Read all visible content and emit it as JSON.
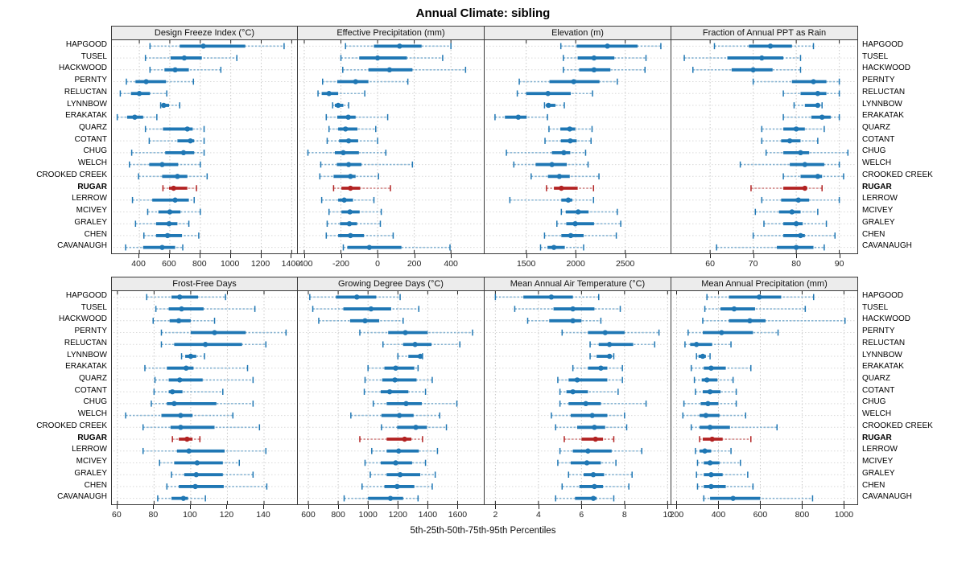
{
  "title": "Annual Climate: sibling",
  "caption": "5th-25th-50th-75th-95th Percentiles",
  "percentiles_order": [
    "5th",
    "25th",
    "50th",
    "75th",
    "95th"
  ],
  "sites": [
    "HAPGOOD",
    "TUSEL",
    "HACKWOOD",
    "PERNTY",
    "RELUCTAN",
    "LYNNBOW",
    "ERAKATAK",
    "QUARZ",
    "COTANT",
    "CHUG",
    "WELCH",
    "CROOKED CREEK",
    "RUGAR",
    "LERROW",
    "MCIVEY",
    "GRALEY",
    "CHEN",
    "CAVANAUGH"
  ],
  "highlight_site": "RUGAR",
  "colors": {
    "series_blue": "#1f77b4",
    "series_blue_light": "rgba(31,119,180,0.5)",
    "highlight_red": "#b22222",
    "highlight_red_light": "rgba(178,34,34,0.5)",
    "panel_header_bg": "#ececec",
    "panel_border": "#3a3a3a",
    "gridline": "#c9c9c9",
    "row_gridline": "#d9d9d9"
  },
  "chart_data": {
    "type": "percentile-interval",
    "mark": "dot-with-25-75-bar-and-5-95-whisker",
    "layout": "2x4 trellis, shared site rows, RUGAR highlighted red",
    "grid": "dotted vertical at ticks, dotted horizontal per site row",
    "panels": [
      {
        "title": "Design Freeze Index (°C)",
        "band": "top",
        "xlim": [
          220,
          1435
        ],
        "ticks": [
          400,
          600,
          800,
          1000,
          1200,
          1400
        ],
        "values": [
          [
            470,
            665,
            820,
            1095,
            1350
          ],
          [
            440,
            605,
            695,
            810,
            1040
          ],
          [
            470,
            565,
            635,
            725,
            935
          ],
          [
            315,
            375,
            445,
            575,
            755
          ],
          [
            275,
            345,
            400,
            470,
            580
          ],
          [
            540,
            548,
            560,
            595,
            665
          ],
          [
            255,
            320,
            370,
            425,
            515
          ],
          [
            440,
            555,
            715,
            750,
            825
          ],
          [
            465,
            650,
            735,
            760,
            825
          ],
          [
            350,
            570,
            690,
            760,
            825
          ],
          [
            335,
            465,
            550,
            655,
            800
          ],
          [
            395,
            550,
            650,
            715,
            845
          ],
          [
            555,
            595,
            625,
            715,
            775
          ],
          [
            355,
            485,
            635,
            725,
            760
          ],
          [
            455,
            525,
            600,
            670,
            800
          ],
          [
            375,
            510,
            595,
            650,
            725
          ],
          [
            430,
            510,
            585,
            680,
            790
          ],
          [
            310,
            425,
            550,
            635,
            685
          ]
        ]
      },
      {
        "title": "Effective Precipitation (mm)",
        "band": "top",
        "xlim": [
          -435,
          575
        ],
        "ticks": [
          -400,
          -200,
          0,
          200,
          400
        ],
        "values": [
          [
            -175,
            -20,
            120,
            240,
            400
          ],
          [
            -200,
            -100,
            0,
            160,
            355
          ],
          [
            -190,
            -50,
            65,
            190,
            480
          ],
          [
            -300,
            -220,
            -120,
            -50,
            165
          ],
          [
            -325,
            -305,
            -265,
            -215,
            -70
          ],
          [
            -245,
            -233,
            -215,
            -187,
            -158
          ],
          [
            -280,
            -220,
            -160,
            -120,
            55
          ],
          [
            -265,
            -215,
            -175,
            -110,
            -10
          ],
          [
            -275,
            -210,
            -158,
            -106,
            0
          ],
          [
            -380,
            -233,
            -187,
            -102,
            45
          ],
          [
            -310,
            -222,
            -158,
            -88,
            190
          ],
          [
            -315,
            -240,
            -148,
            -120,
            5
          ],
          [
            -240,
            -197,
            -148,
            -95,
            70
          ],
          [
            -305,
            -215,
            -182,
            -134,
            -20
          ],
          [
            -265,
            -197,
            -151,
            -98,
            20
          ],
          [
            -275,
            -205,
            -154,
            -112,
            15
          ],
          [
            -280,
            -215,
            -148,
            -74,
            85
          ],
          [
            -187,
            -165,
            -45,
            130,
            395
          ]
        ]
      },
      {
        "title": "Elevation (m)",
        "band": "top",
        "xlim": [
          1080,
          2950
        ],
        "ticks": [
          1500,
          2000,
          2500
        ],
        "values": [
          [
            1850,
            2010,
            2320,
            2625,
            2860
          ],
          [
            1875,
            2020,
            2185,
            2390,
            2710
          ],
          [
            1875,
            2035,
            2185,
            2350,
            2700
          ],
          [
            1430,
            1735,
            1980,
            2240,
            2420
          ],
          [
            1410,
            1500,
            1720,
            1950,
            2170
          ],
          [
            1685,
            1700,
            1725,
            1795,
            1885
          ],
          [
            1185,
            1285,
            1420,
            1505,
            1715
          ],
          [
            1730,
            1845,
            1940,
            1995,
            2165
          ],
          [
            1690,
            1850,
            1945,
            2010,
            2155
          ],
          [
            1300,
            1760,
            1880,
            1945,
            2100
          ],
          [
            1375,
            1595,
            1760,
            1910,
            2125
          ],
          [
            1550,
            1720,
            1835,
            1940,
            2235
          ],
          [
            1705,
            1780,
            1855,
            2020,
            2180
          ],
          [
            1335,
            1855,
            1925,
            1965,
            2180
          ],
          [
            1855,
            1900,
            2025,
            2130,
            2420
          ],
          [
            1810,
            1905,
            1995,
            2185,
            2455
          ],
          [
            1685,
            1855,
            1950,
            2080,
            2410
          ],
          [
            1645,
            1715,
            1780,
            1890,
            2080
          ]
        ]
      },
      {
        "title": "Fraction of Annual PPT as Rain",
        "band": "top",
        "xlim": [
          51,
          94
        ],
        "ticks": [
          60,
          70,
          80,
          90
        ],
        "values": [
          [
            61,
            69,
            74,
            79,
            84
          ],
          [
            54,
            64,
            72,
            77,
            81
          ],
          [
            56,
            65,
            70,
            74.5,
            81
          ],
          [
            70,
            79,
            84,
            87,
            90
          ],
          [
            77,
            81,
            85,
            87,
            90
          ],
          [
            79.5,
            82,
            85,
            85.5,
            86
          ],
          [
            77,
            83.5,
            86,
            88,
            90
          ],
          [
            72,
            77,
            80,
            82,
            86.5
          ],
          [
            72,
            76.5,
            78.5,
            81,
            85
          ],
          [
            73,
            77,
            81,
            83,
            92
          ],
          [
            67,
            78.5,
            82,
            86.5,
            90
          ],
          [
            77,
            81,
            85,
            86,
            91
          ],
          [
            69.5,
            77,
            82,
            82.5,
            86
          ],
          [
            72,
            76.5,
            80.5,
            83,
            90
          ],
          [
            70.5,
            76,
            79,
            81,
            85
          ],
          [
            72.5,
            77,
            80,
            81.5,
            87
          ],
          [
            70,
            77,
            81,
            82,
            89
          ],
          [
            61.5,
            75.5,
            80,
            84,
            86.5
          ]
        ]
      },
      {
        "title": "Frost-Free Days",
        "band": "bottom",
        "xlim": [
          57,
          158
        ],
        "ticks": [
          60,
          80,
          100,
          120,
          140
        ],
        "values": [
          [
            76,
            89.5,
            94,
            104,
            119
          ],
          [
            81,
            88,
            95,
            107,
            135
          ],
          [
            79.5,
            88.5,
            93.5,
            100,
            113
          ],
          [
            84,
            100,
            113,
            130,
            152
          ],
          [
            84,
            91,
            108,
            128,
            141
          ],
          [
            95,
            97,
            100,
            103,
            107.5
          ],
          [
            75,
            87,
            97.5,
            101.5,
            131
          ],
          [
            80.5,
            88,
            94,
            106.5,
            134
          ],
          [
            80,
            88,
            90,
            95.5,
            117.5
          ],
          [
            78.5,
            87,
            91,
            114,
            134
          ],
          [
            64.5,
            84,
            94.5,
            101,
            123
          ],
          [
            74,
            89,
            94.5,
            113,
            137.5
          ],
          [
            90,
            93.5,
            98,
            101,
            105
          ],
          [
            74,
            92.5,
            99,
            118.5,
            141
          ],
          [
            83,
            91,
            103.5,
            117.5,
            126.5
          ],
          [
            89.5,
            96.5,
            103,
            117.5,
            134
          ],
          [
            87,
            93.5,
            102.5,
            118,
            141.5
          ],
          [
            82,
            89.5,
            96,
            98.5,
            108
          ]
        ]
      },
      {
        "title": "Growing Degree Days (°C)",
        "band": "bottom",
        "xlim": [
          530,
          1770
        ],
        "ticks": [
          600,
          800,
          1000,
          1200,
          1400,
          1600
        ],
        "values": [
          [
            610,
            785,
            925,
            1055,
            1215
          ],
          [
            630,
            835,
            1020,
            1155,
            1340
          ],
          [
            670,
            880,
            980,
            1075,
            1235
          ],
          [
            945,
            1135,
            1250,
            1400,
            1700
          ],
          [
            1100,
            1235,
            1315,
            1425,
            1615
          ],
          [
            1200,
            1270,
            1350,
            1360,
            1365
          ],
          [
            1000,
            1110,
            1185,
            1310,
            1335
          ],
          [
            980,
            1095,
            1180,
            1325,
            1430
          ],
          [
            975,
            1085,
            1145,
            1270,
            1385
          ],
          [
            1035,
            1125,
            1255,
            1360,
            1595
          ],
          [
            885,
            1090,
            1210,
            1305,
            1480
          ],
          [
            1090,
            1195,
            1320,
            1395,
            1525
          ],
          [
            945,
            1125,
            1245,
            1290,
            1365
          ],
          [
            1025,
            1125,
            1205,
            1340,
            1465
          ],
          [
            980,
            1085,
            1185,
            1295,
            1385
          ],
          [
            1015,
            1125,
            1215,
            1350,
            1450
          ],
          [
            960,
            1110,
            1195,
            1310,
            1430
          ],
          [
            840,
            1000,
            1150,
            1235,
            1335
          ]
        ]
      },
      {
        "title": "Mean Annual Air Temperature (°C)",
        "band": "bottom",
        "xlim": [
          1.5,
          10.1
        ],
        "ticks": [
          2,
          4,
          6,
          8,
          10
        ],
        "values": [
          [
            2.0,
            3.3,
            4.6,
            5.6,
            6.8
          ],
          [
            2.9,
            4.7,
            5.6,
            6.6,
            7.8
          ],
          [
            3.5,
            4.5,
            5.6,
            6.0,
            6.9
          ],
          [
            5.1,
            6.3,
            7.1,
            8.0,
            9.6
          ],
          [
            6.4,
            6.8,
            7.3,
            8.4,
            9.4
          ],
          [
            6.4,
            6.7,
            7.3,
            7.4,
            7.5
          ],
          [
            5.6,
            6.3,
            6.9,
            7.2,
            7.9
          ],
          [
            4.9,
            5.4,
            5.8,
            7.2,
            7.9
          ],
          [
            5.0,
            5.3,
            5.6,
            6.3,
            7.7
          ],
          [
            5.0,
            5.4,
            6.2,
            6.9,
            9.0
          ],
          [
            4.6,
            5.5,
            6.5,
            7.2,
            8.0
          ],
          [
            4.8,
            5.8,
            6.6,
            7.1,
            8.1
          ],
          [
            5.2,
            6.0,
            6.65,
            7.0,
            7.5
          ],
          [
            5.0,
            5.6,
            6.3,
            7.4,
            8.8
          ],
          [
            4.9,
            5.5,
            6.25,
            6.9,
            7.6
          ],
          [
            5.4,
            6.1,
            6.55,
            7.05,
            8.35
          ],
          [
            5.1,
            5.9,
            6.6,
            7.0,
            8.2
          ],
          [
            4.8,
            5.7,
            6.55,
            6.7,
            7.5
          ]
        ]
      },
      {
        "title": "Mean Annual Precipitation (mm)",
        "band": "bottom",
        "xlim": [
          175,
          1060
        ],
        "ticks": [
          200,
          400,
          600,
          800,
          1000
        ],
        "values": [
          [
            345,
            450,
            595,
            700,
            855
          ],
          [
            335,
            410,
            475,
            575,
            815
          ],
          [
            325,
            450,
            550,
            625,
            1005
          ],
          [
            255,
            325,
            415,
            565,
            685
          ],
          [
            240,
            265,
            295,
            370,
            460
          ],
          [
            295,
            305,
            325,
            340,
            360
          ],
          [
            270,
            330,
            365,
            435,
            555
          ],
          [
            285,
            320,
            345,
            395,
            470
          ],
          [
            290,
            325,
            360,
            410,
            485
          ],
          [
            235,
            315,
            350,
            400,
            485
          ],
          [
            230,
            310,
            340,
            405,
            530
          ],
          [
            270,
            310,
            360,
            455,
            680
          ],
          [
            310,
            325,
            370,
            420,
            555
          ],
          [
            290,
            310,
            335,
            365,
            460
          ],
          [
            300,
            330,
            360,
            405,
            505
          ],
          [
            295,
            330,
            365,
            420,
            540
          ],
          [
            300,
            330,
            365,
            435,
            565
          ],
          [
            330,
            360,
            470,
            600,
            850
          ]
        ]
      }
    ]
  }
}
